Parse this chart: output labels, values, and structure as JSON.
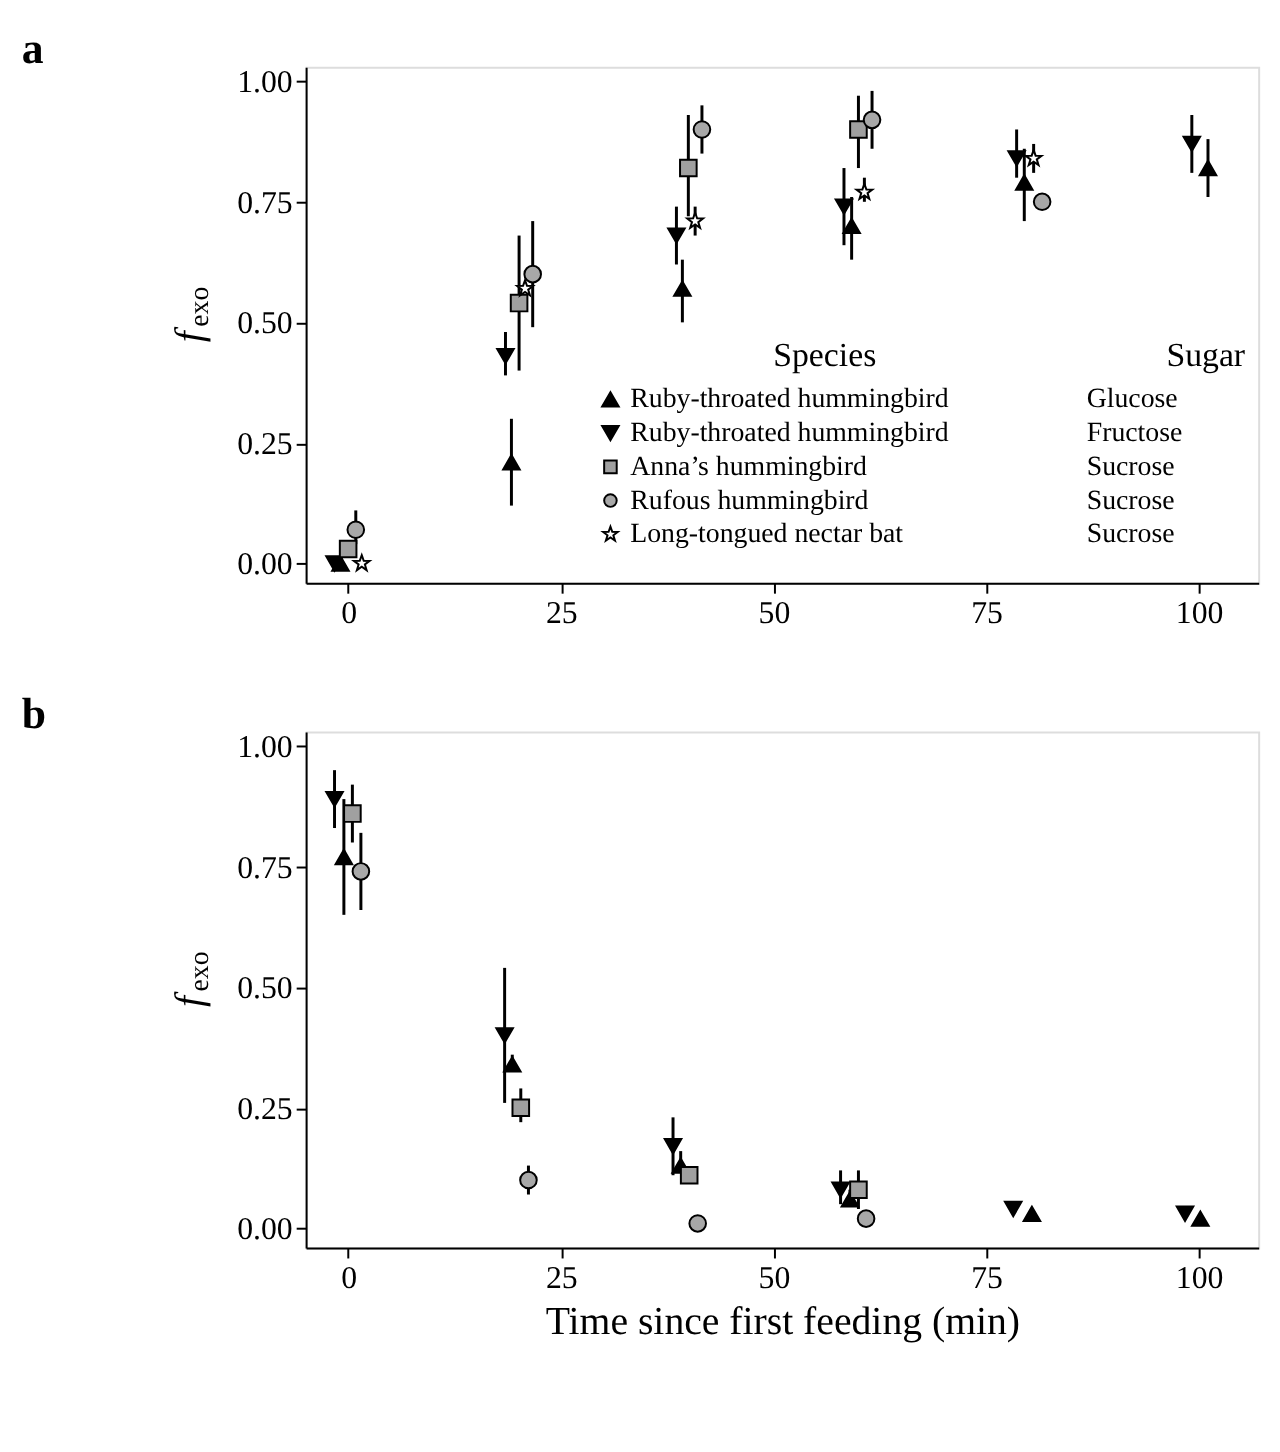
{
  "chart_data": [
    {
      "type": "scatter",
      "title": "a",
      "ylabel": "f$_{exo}$",
      "legend_title": "Species",
      "legend": "right",
      "annotations": [
        "Sugar",
        "Glucose",
        "Fructose",
        "Sucrose",
        "Sucrose",
        "Sucrose"
      ],
      "xlim": [
        -5,
        107
      ],
      "xticks": [
        0,
        25,
        50,
        75,
        100
      ],
      "ylim": [
        -0.04,
        1.03
      ],
      "yticks": [
        {
          "value": 0,
          "label": "0.00"
        },
        {
          "value": 0.25,
          "label": "0.25"
        },
        {
          "value": 0.5,
          "label": "0.50"
        },
        {
          "value": 0.75,
          "label": "0.75"
        },
        {
          "value": 1,
          "label": "1.00"
        }
      ],
      "grid": false,
      "series": [
        {
          "name": "Ruby-throated hummingbird",
          "color": "#000000",
          "marker": "triangle",
          "x": [
            -0.9,
            19.2,
            39.3,
            59.2,
            79.5,
            101.1
          ],
          "values": [
            0.0,
            0.21,
            0.57,
            0.7,
            0.79,
            0.82
          ],
          "errors": [
            null,
            [
              0.12,
              0.3
            ],
            [
              0.5,
              0.63
            ],
            [
              0.63,
              0.76
            ],
            [
              0.71,
              0.86
            ],
            [
              0.76,
              0.88
            ]
          ]
        },
        {
          "name": "Ruby-throated hummingbird",
          "color": "#000000",
          "marker": "triangle-down",
          "x": [
            -1.6,
            18.5,
            38.6,
            58.3,
            78.6,
            99.2
          ],
          "values": [
            0.0,
            0.43,
            0.68,
            0.74,
            0.84,
            0.87
          ],
          "errors": [
            null,
            [
              0.39,
              0.48
            ],
            [
              0.62,
              0.74
            ],
            [
              0.66,
              0.82
            ],
            [
              0.8,
              0.9
            ],
            [
              0.81,
              0.93
            ]
          ]
        },
        {
          "name": "Anna’s hummingbird",
          "color": "#a0a0a0",
          "marker": "square",
          "x": [
            0,
            20.1,
            40,
            60
          ],
          "values": [
            0.03,
            0.54,
            0.82,
            0.9
          ],
          "errors": [
            null,
            [
              0.4,
              0.68
            ],
            [
              0.72,
              0.93
            ],
            [
              0.82,
              0.97
            ]
          ]
        },
        {
          "name": "Rufous hummingbird",
          "color": "#a8a8a8",
          "marker": "circle",
          "x": [
            0.9,
            21.7,
            41.6,
            61.6,
            81.6
          ],
          "values": [
            0.07,
            0.6,
            0.9,
            0.92,
            0.75
          ],
          "errors": [
            [
              0.04,
              0.11
            ],
            [
              0.49,
              0.71
            ],
            [
              0.85,
              0.95
            ],
            [
              0.86,
              0.98
            ],
            null
          ]
        },
        {
          "name": "Long-tongued nectar bat",
          "color": "#ffffff",
          "marker": "star",
          "x": [
            1.6,
            20.8,
            40.8,
            60.7,
            80.6
          ],
          "values": [
            0.0,
            0.57,
            0.71,
            0.77,
            0.84
          ],
          "errors": [
            null,
            null,
            [
              0.68,
              0.74
            ],
            [
              0.75,
              0.8
            ],
            [
              0.81,
              0.87
            ]
          ]
        }
      ]
    },
    {
      "type": "scatter",
      "title": "b",
      "ylabel": "f$_{exo}$",
      "xlabel": "Time since first feeding (min)",
      "xlim": [
        -5,
        107
      ],
      "xticks": [
        0,
        25,
        50,
        75,
        100
      ],
      "ylim": [
        -0.04,
        1.03
      ],
      "yticks": [
        {
          "value": 0,
          "label": "0.00"
        },
        {
          "value": 0.25,
          "label": "0.25"
        },
        {
          "value": 0.5,
          "label": "0.50"
        },
        {
          "value": 0.75,
          "label": "0.75"
        },
        {
          "value": 1,
          "label": "1.00"
        }
      ],
      "grid": false,
      "series": [
        {
          "color": "#000000",
          "marker": "triangle",
          "x": [
            -0.5,
            19.3,
            39.1,
            59,
            80.4,
            100.2
          ],
          "values": [
            0.77,
            0.34,
            0.13,
            0.06,
            0.03,
            0.02
          ],
          "errors": [
            [
              0.65,
              0.89
            ],
            [
              0.33,
              0.36
            ],
            [
              0.12,
              0.16
            ],
            [
              0.05,
              0.08
            ],
            null,
            null
          ]
        },
        {
          "color": "#000000",
          "marker": "triangle-down",
          "x": [
            -1.6,
            18.4,
            38.2,
            57.9,
            78.2,
            98.4
          ],
          "values": [
            0.89,
            0.4,
            0.17,
            0.08,
            0.04,
            0.03
          ],
          "errors": [
            [
              0.83,
              0.95
            ],
            [
              0.26,
              0.54
            ],
            [
              0.11,
              0.23
            ],
            [
              0.05,
              0.12
            ],
            null,
            null
          ]
        },
        {
          "color": "#a0a0a0",
          "marker": "square",
          "x": [
            0.5,
            20.3,
            40.1,
            60
          ],
          "values": [
            0.86,
            0.25,
            0.11,
            0.08
          ],
          "errors": [
            [
              0.8,
              0.92
            ],
            [
              0.22,
              0.29
            ],
            null,
            [
              0.04,
              0.12
            ]
          ]
        },
        {
          "color": "#a8a8a8",
          "marker": "circle",
          "x": [
            1.5,
            21.2,
            41.1,
            60.9
          ],
          "values": [
            0.74,
            0.1,
            0.01,
            0.02
          ],
          "errors": [
            [
              0.66,
              0.82
            ],
            [
              0.07,
              0.13
            ],
            null,
            null
          ]
        }
      ]
    }
  ]
}
